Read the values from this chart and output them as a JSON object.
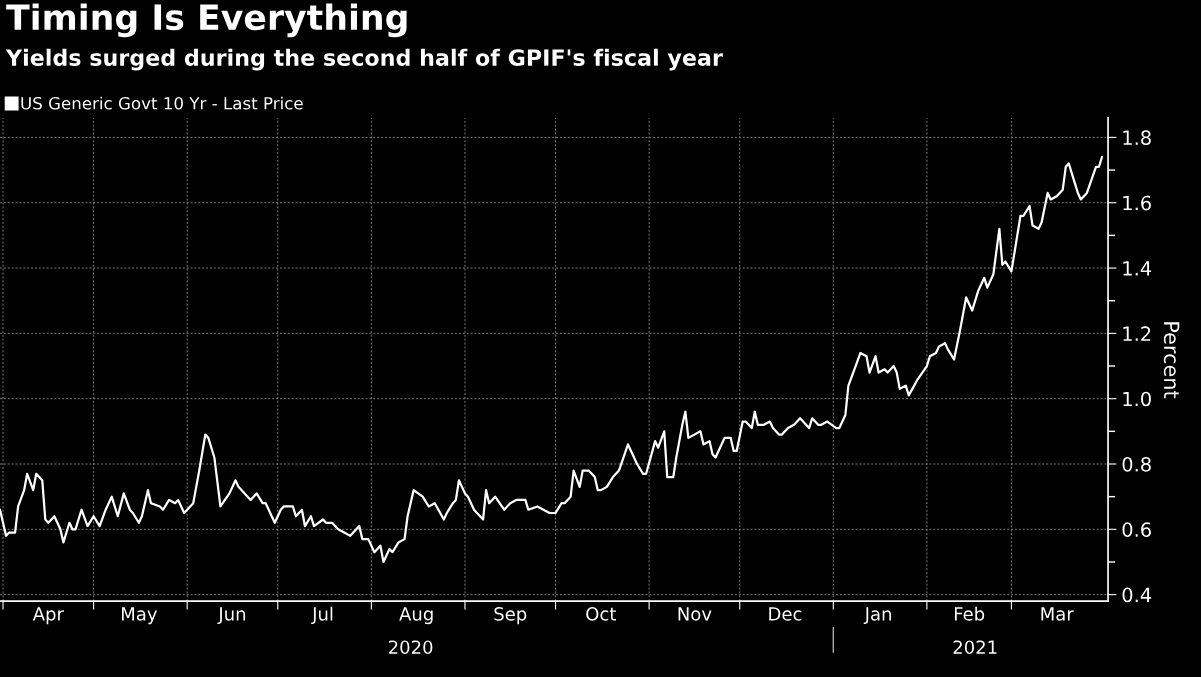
{
  "chart_data": {
    "type": "line",
    "title": "Timing Is Everything",
    "subtitle": "Yields surged during the second half of GPIF's fiscal year",
    "ylabel": "Percent",
    "legend": "top left",
    "grid": true,
    "xlim": [
      "2020-03-31",
      "2021-04-02"
    ],
    "xticks": [
      {
        "value": "2020-04-01",
        "label": null
      },
      {
        "value": "2020-04-16",
        "label": "Apr"
      },
      {
        "value": "2020-05-01",
        "label": null
      },
      {
        "value": "2020-05-16",
        "label": "May"
      },
      {
        "value": "2020-06-01",
        "label": null
      },
      {
        "value": "2020-06-16",
        "label": "Jun"
      },
      {
        "value": "2020-07-01",
        "label": null
      },
      {
        "value": "2020-07-16",
        "label": "Jul"
      },
      {
        "value": "2020-08-01",
        "label": null
      },
      {
        "value": "2020-08-16",
        "label": "Aug"
      },
      {
        "value": "2020-09-01",
        "label": null
      },
      {
        "value": "2020-09-16",
        "label": "Sep"
      },
      {
        "value": "2020-10-01",
        "label": null
      },
      {
        "value": "2020-10-16",
        "label": "Oct"
      },
      {
        "value": "2020-11-01",
        "label": null
      },
      {
        "value": "2020-11-16",
        "label": "Nov"
      },
      {
        "value": "2020-12-01",
        "label": null
      },
      {
        "value": "2020-12-16",
        "label": "Dec"
      },
      {
        "value": "2021-01-01",
        "label": null
      },
      {
        "value": "2021-01-16",
        "label": "Jan"
      },
      {
        "value": "2021-02-01",
        "label": null
      },
      {
        "value": "2021-02-15",
        "label": "Feb"
      },
      {
        "value": "2021-03-01",
        "label": null
      },
      {
        "value": "2021-03-16",
        "label": "Mar"
      }
    ],
    "x2lim": [
      "2020-03-31",
      "2021-04-02"
    ],
    "x2ticks": [
      {
        "value": "2020-08-14",
        "label": "2020"
      },
      {
        "value": "2021-01-01",
        "label": null
      },
      {
        "value": "2021-02-17",
        "label": "2021"
      }
    ],
    "ylim": [
      0.38,
      1.86
    ],
    "yticks": [
      {
        "value": 0.4,
        "label": "0.4"
      },
      {
        "value": 0.5,
        "label": null
      },
      {
        "value": 0.6,
        "label": "0.6"
      },
      {
        "value": 0.7,
        "label": null
      },
      {
        "value": 0.8,
        "label": "0.8"
      },
      {
        "value": 0.9,
        "label": null
      },
      {
        "value": 1.0,
        "label": "1.0"
      },
      {
        "value": 1.1,
        "label": null
      },
      {
        "value": 1.2,
        "label": "1.2"
      },
      {
        "value": 1.3,
        "label": null
      },
      {
        "value": 1.4,
        "label": "1.4"
      },
      {
        "value": 1.5,
        "label": null
      },
      {
        "value": 1.6,
        "label": "1.6"
      },
      {
        "value": 1.7,
        "label": null
      },
      {
        "value": 1.8,
        "label": "1.8"
      }
    ],
    "series": [
      {
        "name": "US Generic Govt 10 Yr - Last Price",
        "color": "#ffffff",
        "x": [
          "2020-03-31",
          "2020-04-02",
          "2020-04-03",
          "2020-04-05",
          "2020-04-06",
          "2020-04-08",
          "2020-04-09",
          "2020-04-11",
          "2020-04-12",
          "2020-04-14",
          "2020-04-15",
          "2020-04-16",
          "2020-04-18",
          "2020-04-20",
          "2020-04-21",
          "2020-04-23",
          "2020-04-24",
          "2020-04-25",
          "2020-04-27",
          "2020-04-29",
          "2020-05-01",
          "2020-05-03",
          "2020-05-05",
          "2020-05-07",
          "2020-05-09",
          "2020-05-11",
          "2020-05-13",
          "2020-05-14",
          "2020-05-16",
          "2020-05-17",
          "2020-05-19",
          "2020-05-20",
          "2020-05-23",
          "2020-05-24",
          "2020-05-26",
          "2020-05-28",
          "2020-05-29",
          "2020-05-31",
          "2020-06-01",
          "2020-06-03",
          "2020-06-05",
          "2020-06-07",
          "2020-06-08",
          "2020-06-10",
          "2020-06-12",
          "2020-06-15",
          "2020-06-17",
          "2020-06-18",
          "2020-06-21",
          "2020-06-22",
          "2020-06-24",
          "2020-06-26",
          "2020-06-27",
          "2020-06-29",
          "2020-06-30",
          "2020-07-02",
          "2020-07-03",
          "2020-07-04",
          "2020-07-06",
          "2020-07-07",
          "2020-07-09",
          "2020-07-10",
          "2020-07-12",
          "2020-07-13",
          "2020-07-16",
          "2020-07-17",
          "2020-07-19",
          "2020-07-21",
          "2020-07-23",
          "2020-07-25",
          "2020-07-28",
          "2020-07-29",
          "2020-07-31",
          "2020-08-02",
          "2020-08-04",
          "2020-08-05",
          "2020-08-07",
          "2020-08-08",
          "2020-08-10",
          "2020-08-12",
          "2020-08-13",
          "2020-08-15",
          "2020-08-18",
          "2020-08-20",
          "2020-08-22",
          "2020-08-25",
          "2020-08-26",
          "2020-08-28",
          "2020-08-29",
          "2020-08-30",
          "2020-09-01",
          "2020-09-02",
          "2020-09-04",
          "2020-09-07",
          "2020-09-08",
          "2020-09-09",
          "2020-09-11",
          "2020-09-14",
          "2020-09-16",
          "2020-09-18",
          "2020-09-20",
          "2020-09-21",
          "2020-09-22",
          "2020-09-25",
          "2020-09-27",
          "2020-09-29",
          "2020-10-01",
          "2020-10-03",
          "2020-10-04",
          "2020-10-06",
          "2020-10-07",
          "2020-10-09",
          "2020-10-10",
          "2020-10-12",
          "2020-10-14",
          "2020-10-15",
          "2020-10-16",
          "2020-10-18",
          "2020-10-20",
          "2020-10-22",
          "2020-10-25",
          "2020-10-26",
          "2020-10-28",
          "2020-10-30",
          "2020-10-31",
          "2020-11-03",
          "2020-11-04",
          "2020-11-06",
          "2020-11-07",
          "2020-11-09",
          "2020-11-10",
          "2020-11-12",
          "2020-11-13",
          "2020-11-14",
          "2020-11-16",
          "2020-11-18",
          "2020-11-19",
          "2020-11-21",
          "2020-11-22",
          "2020-11-23",
          "2020-11-26",
          "2020-11-28",
          "2020-11-29",
          "2020-11-30",
          "2020-12-02",
          "2020-12-03",
          "2020-12-05",
          "2020-12-06",
          "2020-12-07",
          "2020-12-09",
          "2020-12-11",
          "2020-12-12",
          "2020-12-14",
          "2020-12-15",
          "2020-12-17",
          "2020-12-19",
          "2020-12-21",
          "2020-12-22",
          "2020-12-24",
          "2020-12-25",
          "2020-12-27",
          "2020-12-28",
          "2020-12-30",
          "2021-01-02",
          "2021-01-03",
          "2021-01-05",
          "2021-01-06",
          "2021-01-08",
          "2021-01-10",
          "2021-01-12",
          "2021-01-13",
          "2021-01-15",
          "2021-01-16",
          "2021-01-18",
          "2021-01-19",
          "2021-01-21",
          "2021-01-22",
          "2021-01-23",
          "2021-01-25",
          "2021-01-26",
          "2021-01-29",
          "2021-02-01",
          "2021-02-02",
          "2021-02-04",
          "2021-02-05",
          "2021-02-07",
          "2021-02-08",
          "2021-02-10",
          "2021-02-12",
          "2021-02-14",
          "2021-02-16",
          "2021-02-18",
          "2021-02-20",
          "2021-02-21",
          "2021-02-23",
          "2021-02-25",
          "2021-02-26",
          "2021-02-27",
          "2021-03-01",
          "2021-03-04",
          "2021-03-05",
          "2021-03-07",
          "2021-03-08",
          "2021-03-10",
          "2021-03-11",
          "2021-03-13",
          "2021-03-14",
          "2021-03-16",
          "2021-03-18",
          "2021-03-19",
          "2021-03-20",
          "2021-03-21",
          "2021-03-23",
          "2021-03-24",
          "2021-03-26",
          "2021-03-29",
          "2021-03-30",
          "2021-03-31"
        ],
        "values": [
          0.66,
          0.58,
          0.59,
          0.59,
          0.67,
          0.72,
          0.77,
          0.72,
          0.77,
          0.75,
          0.63,
          0.62,
          0.64,
          0.6,
          0.56,
          0.62,
          0.6,
          0.6,
          0.66,
          0.61,
          0.64,
          0.61,
          0.66,
          0.7,
          0.64,
          0.71,
          0.66,
          0.65,
          0.62,
          0.64,
          0.72,
          0.68,
          0.67,
          0.66,
          0.69,
          0.68,
          0.69,
          0.65,
          0.66,
          0.68,
          0.78,
          0.89,
          0.88,
          0.82,
          0.67,
          0.71,
          0.75,
          0.73,
          0.7,
          0.69,
          0.71,
          0.68,
          0.68,
          0.64,
          0.62,
          0.66,
          0.67,
          0.67,
          0.67,
          0.64,
          0.66,
          0.61,
          0.64,
          0.61,
          0.63,
          0.62,
          0.62,
          0.6,
          0.59,
          0.58,
          0.61,
          0.57,
          0.57,
          0.53,
          0.55,
          0.5,
          0.54,
          0.53,
          0.56,
          0.57,
          0.64,
          0.72,
          0.7,
          0.67,
          0.68,
          0.63,
          0.65,
          0.68,
          0.69,
          0.75,
          0.71,
          0.7,
          0.66,
          0.63,
          0.72,
          0.68,
          0.7,
          0.66,
          0.68,
          0.69,
          0.69,
          0.69,
          0.66,
          0.67,
          0.66,
          0.65,
          0.65,
          0.68,
          0.68,
          0.7,
          0.78,
          0.73,
          0.78,
          0.78,
          0.76,
          0.72,
          0.72,
          0.73,
          0.76,
          0.78,
          0.86,
          0.84,
          0.8,
          0.77,
          0.77,
          0.87,
          0.85,
          0.9,
          0.76,
          0.76,
          0.82,
          0.92,
          0.96,
          0.88,
          0.89,
          0.9,
          0.86,
          0.87,
          0.83,
          0.82,
          0.88,
          0.88,
          0.84,
          0.84,
          0.93,
          0.93,
          0.91,
          0.96,
          0.92,
          0.92,
          0.93,
          0.91,
          0.89,
          0.89,
          0.91,
          0.92,
          0.94,
          0.93,
          0.91,
          0.94,
          0.92,
          0.92,
          0.93,
          0.91,
          0.91,
          0.95,
          1.04,
          1.09,
          1.14,
          1.13,
          1.08,
          1.13,
          1.08,
          1.09,
          1.08,
          1.1,
          1.08,
          1.03,
          1.04,
          1.01,
          1.06,
          1.1,
          1.13,
          1.14,
          1.16,
          1.17,
          1.15,
          1.12,
          1.21,
          1.31,
          1.27,
          1.33,
          1.37,
          1.34,
          1.38,
          1.52,
          1.41,
          1.42,
          1.39,
          1.56,
          1.56,
          1.59,
          1.53,
          1.52,
          1.54,
          1.63,
          1.61,
          1.62,
          1.64,
          1.71,
          1.72,
          1.69,
          1.63,
          1.61,
          1.63,
          1.71,
          1.71,
          1.74
        ]
      }
    ]
  }
}
